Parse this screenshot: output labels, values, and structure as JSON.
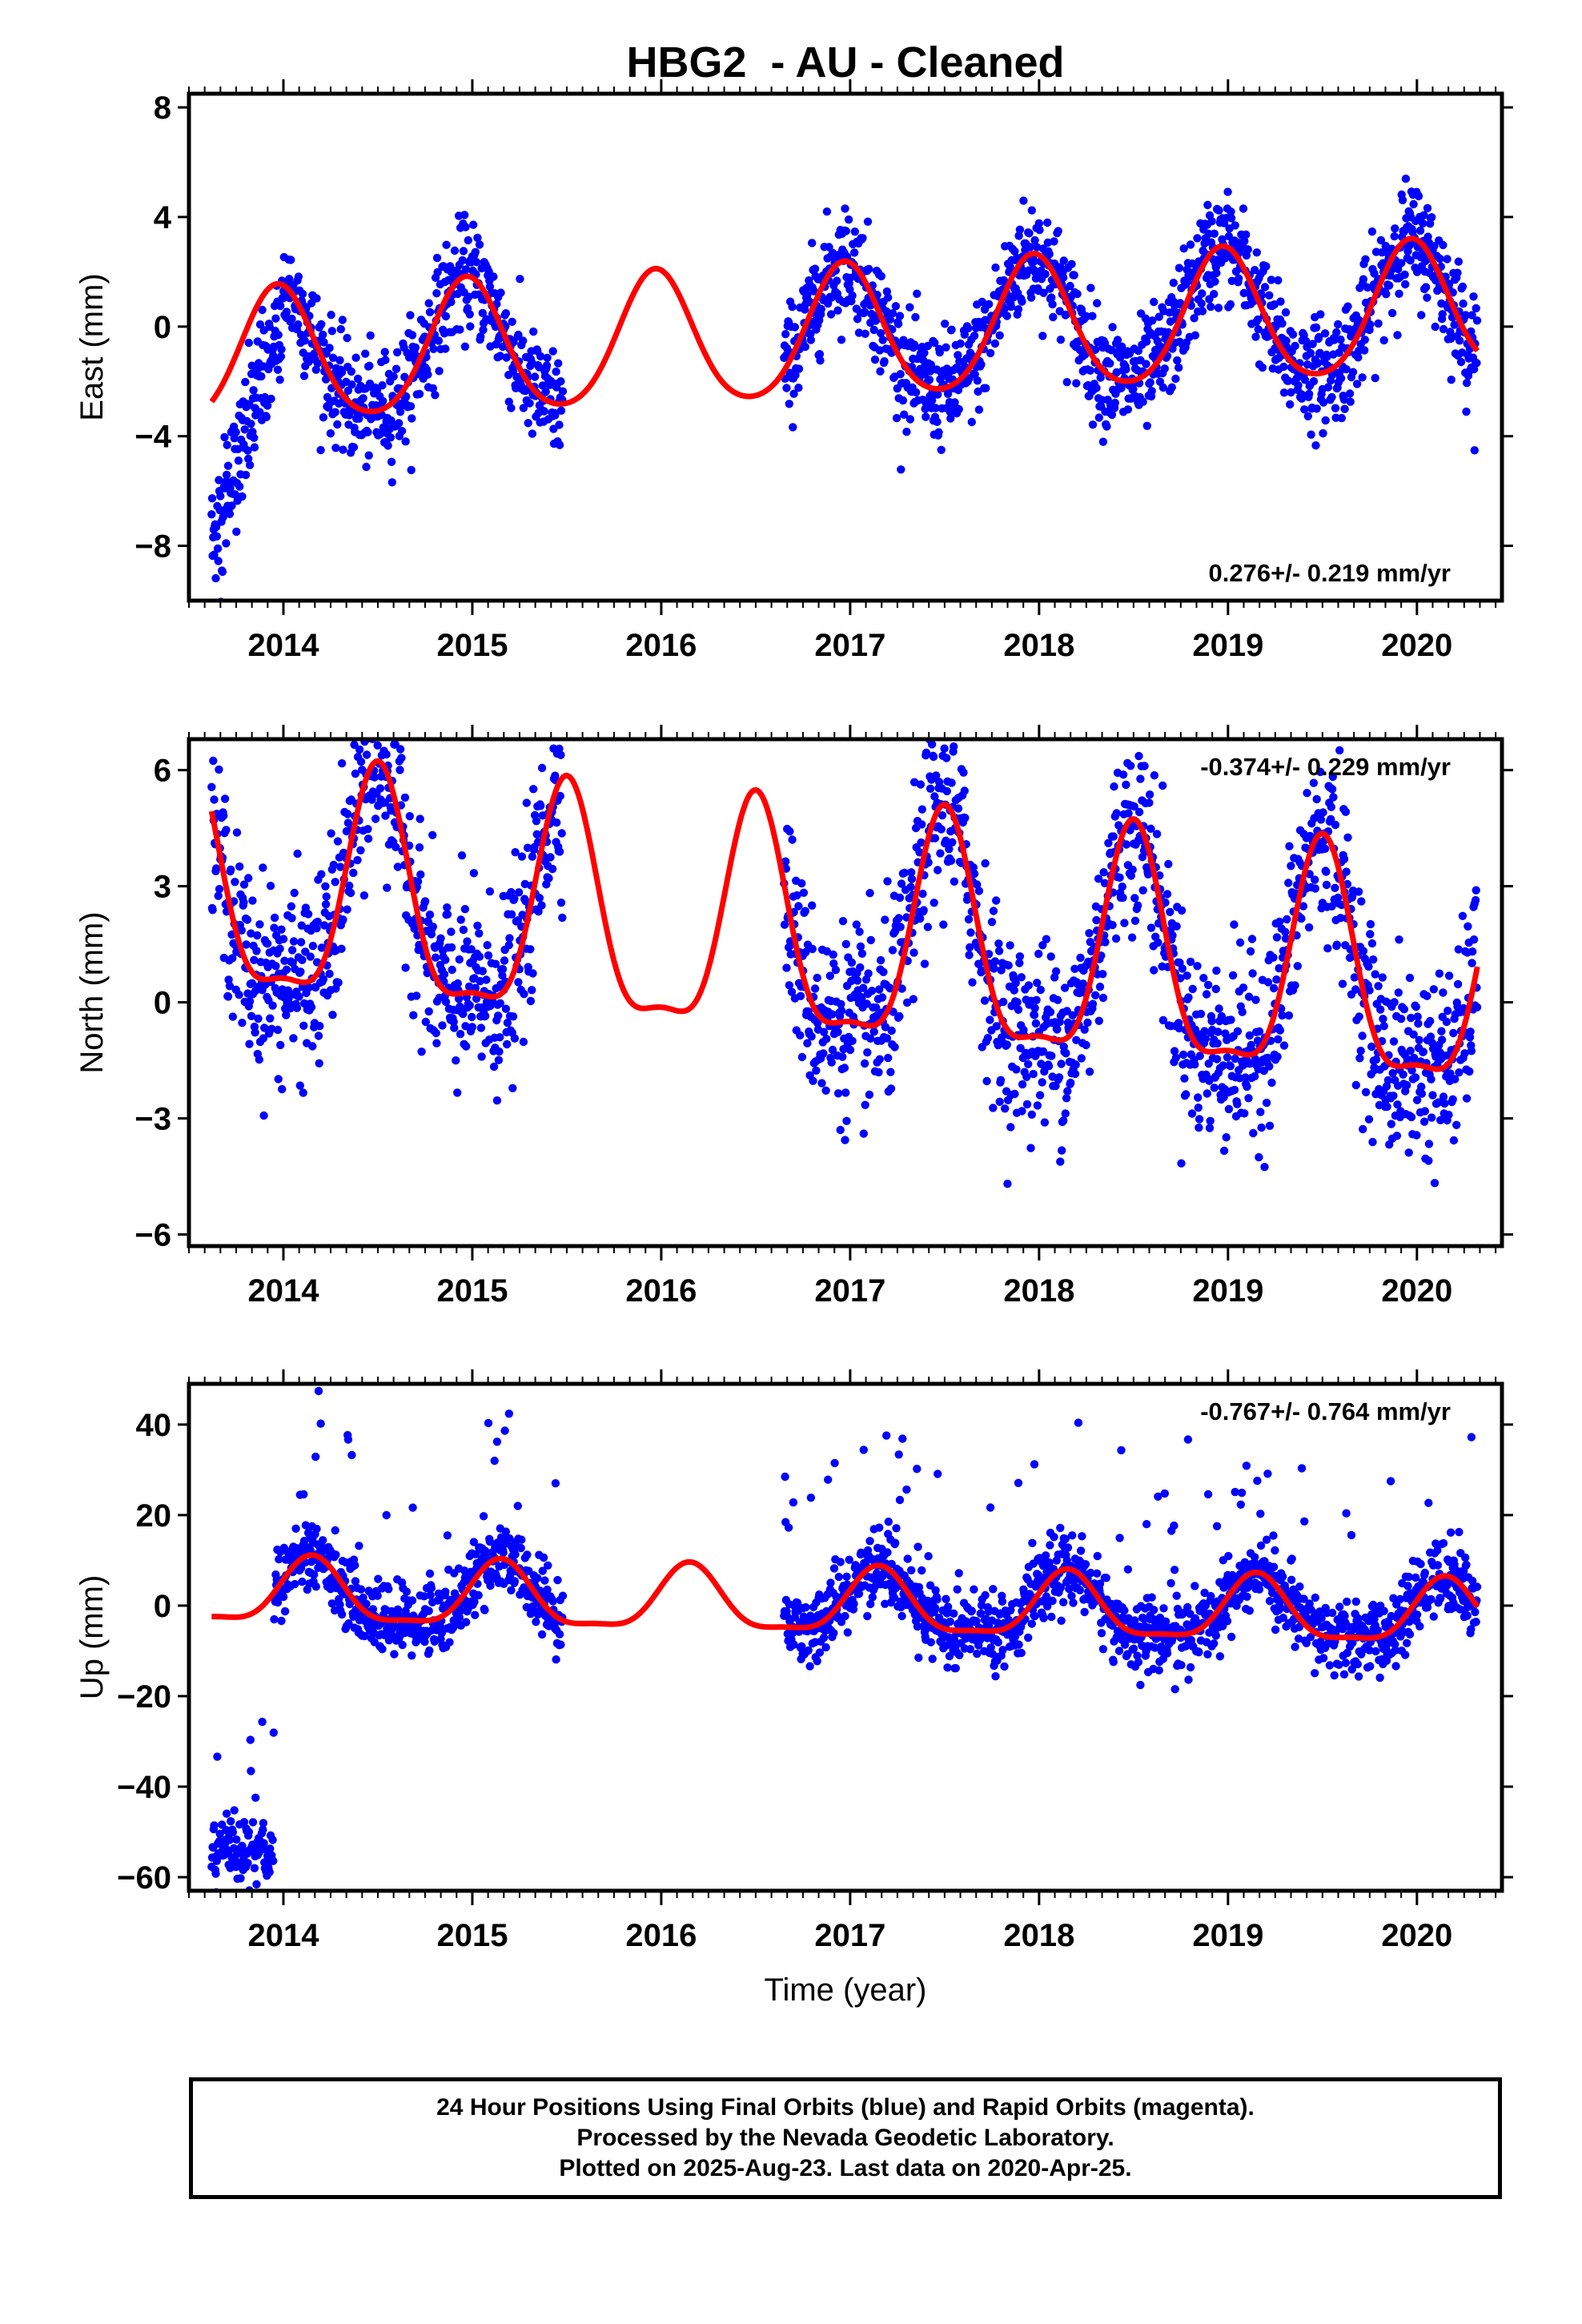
{
  "chart_data": {
    "type": "scatter",
    "title": "HBG2  - AU - Cleaned",
    "xlabel": "Time (year)",
    "xlim": [
      2013.5,
      2020.45
    ],
    "x_ticks": [
      "2014",
      "2015",
      "2016",
      "2017",
      "2018",
      "2019",
      "2020"
    ],
    "series_colors": {
      "observations": "#0000ff",
      "model_fit": "#ff0000"
    },
    "data_segments": [
      [
        2013.62,
        2015.48
      ],
      [
        2016.65,
        2020.32
      ]
    ],
    "panels": [
      {
        "id": "east",
        "ylabel": "East (mm)",
        "ylim": [
          -10,
          8.5
        ],
        "yticks": [
          8,
          4,
          0,
          -4,
          -8
        ],
        "ytick_labels": [
          "8",
          "4",
          "0",
          "−4",
          "−8"
        ],
        "rate_label": "0.276+/- 0.219 mm/yr",
        "rate_position": "bottom-right",
        "fit": {
          "offset": -0.3,
          "trend": 0.276,
          "annual_amp": 2.4,
          "annual_peak": 2013.97,
          "semiannual_amp": 0.3
        },
        "scatter_sd": 1.0,
        "anomaly": {
          "until": 2014.0,
          "start_value": -8.0,
          "end_value": 0.5
        }
      },
      {
        "id": "north",
        "ylabel": "North (mm)",
        "ylim": [
          -6.3,
          6.8
        ],
        "yticks": [
          6,
          3,
          0,
          -3,
          -6
        ],
        "ytick_labels": [
          "6",
          "3",
          "0",
          "−3",
          "−6"
        ],
        "rate_label": "-0.374+/- 0.229 mm/yr",
        "rate_position": "top-right",
        "fit": {
          "offset": 1.5,
          "trend": -0.374,
          "annual_amp": 2.9,
          "annual_peak": 2014.5,
          "semiannual_amp": 0.9
        },
        "scatter_sd": 1.2,
        "anomaly": null
      },
      {
        "id": "up",
        "ylabel": "Up (mm)",
        "ylim": [
          -63,
          49
        ],
        "yticks": [
          40,
          20,
          0,
          -20,
          -40,
          -60
        ],
        "ytick_labels": [
          "40",
          "20",
          "0",
          "−20",
          "−40",
          "−60"
        ],
        "rate_label": "-0.767+/- 0.764 mm/yr",
        "rate_position": "top-right",
        "fit": {
          "offset": 0.0,
          "trend": -0.767,
          "annual_amp": 7.0,
          "annual_peak": 2014.15,
          "semiannual_amp": 2.0
        },
        "scatter_sd": 4.0,
        "anomaly": {
          "until": 2013.95,
          "value": -54,
          "sd": 3.5
        }
      }
    ]
  },
  "footer": {
    "line1": "24 Hour Positions Using Final Orbits (blue) and Rapid Orbits (magenta).",
    "line2": "Processed by the Nevada Geodetic Laboratory.",
    "line3": "Plotted on 2025-Aug-23. Last data on 2020-Apr-25."
  }
}
